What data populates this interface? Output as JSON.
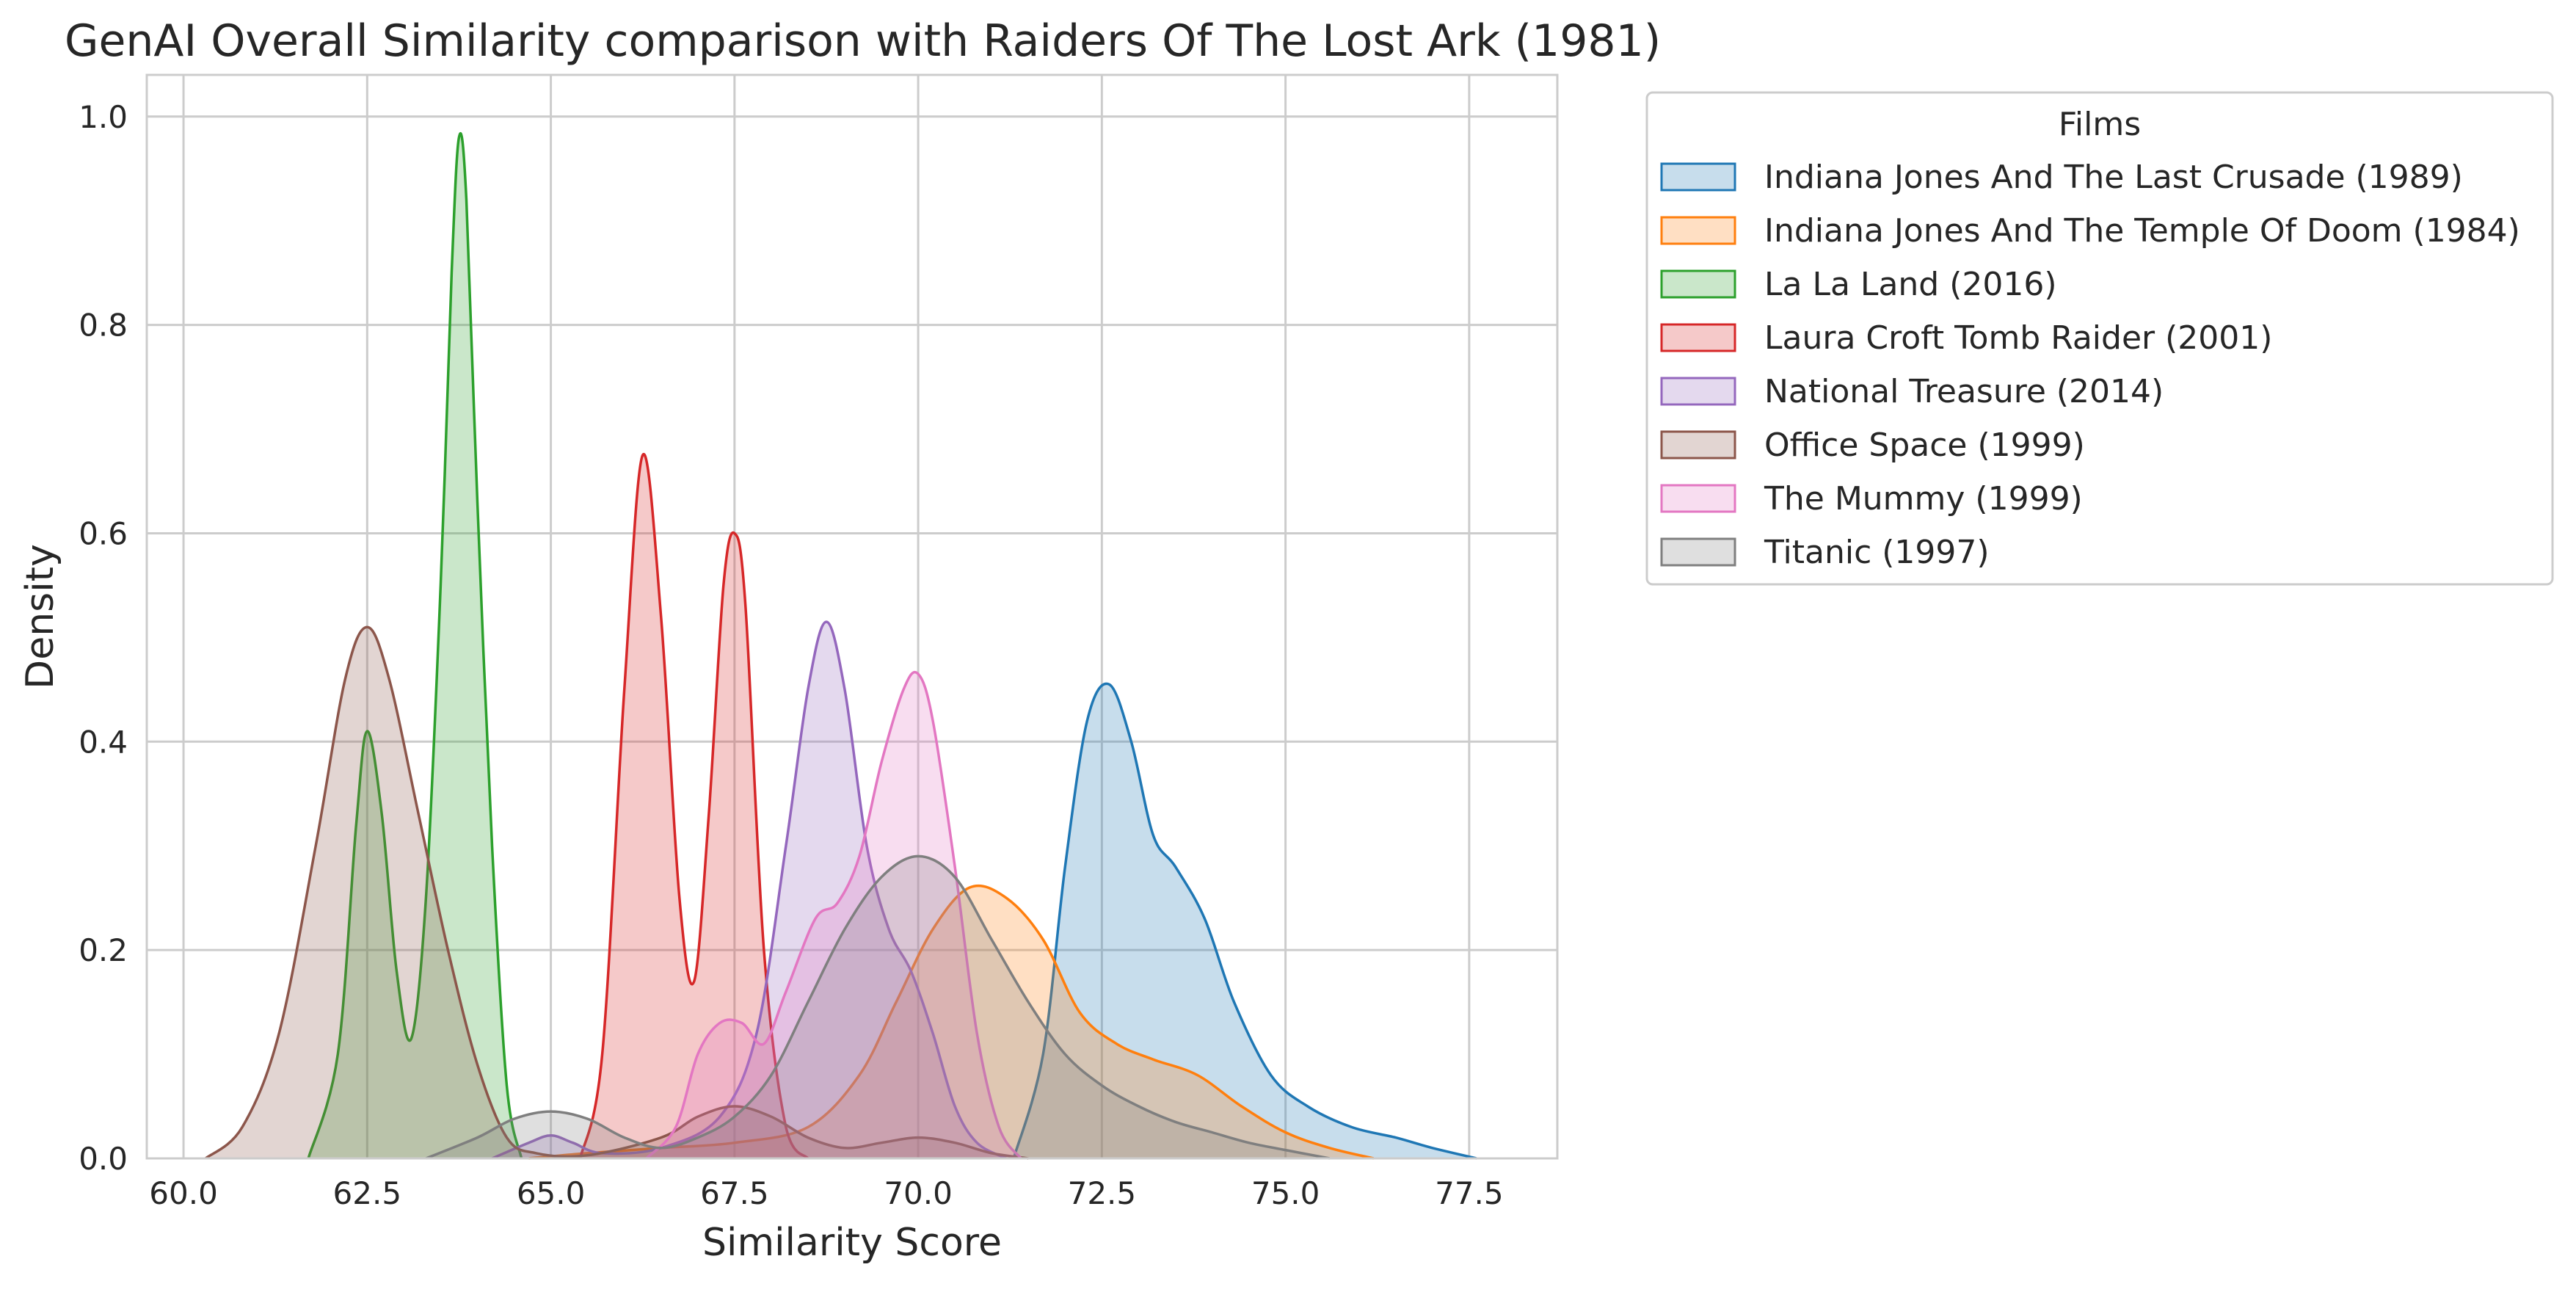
{
  "chart_data": {
    "type": "area",
    "title": "GenAI Overall Similarity comparison with Raiders Of The Lost Ark (1981)",
    "xlabel": "Similarity Score",
    "ylabel": "Density",
    "xlim": [
      59.5,
      78.7
    ],
    "ylim": [
      0,
      1.04
    ],
    "x_ticks": [
      "60.0",
      "62.5",
      "65.0",
      "67.5",
      "70.0",
      "72.5",
      "75.0",
      "77.5"
    ],
    "y_ticks": [
      "0.0",
      "0.2",
      "0.4",
      "0.6",
      "0.8",
      "1.0"
    ],
    "grid": true,
    "legend": {
      "title": "Films",
      "placement": "outside-top-right"
    },
    "series": [
      {
        "name": "Indiana Jones And The Last Crusade (1989)",
        "color": "#1f77b4",
        "points": [
          [
            71.3,
            0
          ],
          [
            71.7,
            0.1
          ],
          [
            72.0,
            0.28
          ],
          [
            72.3,
            0.42
          ],
          [
            72.6,
            0.455
          ],
          [
            72.9,
            0.4
          ],
          [
            73.2,
            0.31
          ],
          [
            73.5,
            0.28
          ],
          [
            73.9,
            0.23
          ],
          [
            74.3,
            0.15
          ],
          [
            74.8,
            0.08
          ],
          [
            75.3,
            0.05
          ],
          [
            75.9,
            0.03
          ],
          [
            76.5,
            0.02
          ],
          [
            77.0,
            0.01
          ],
          [
            77.6,
            0
          ]
        ]
      },
      {
        "name": "Indiana Jones And The Temple Of Doom (1984)",
        "color": "#ff7f0e",
        "points": [
          [
            64.7,
            0
          ],
          [
            65.5,
            0.005
          ],
          [
            66.5,
            0.01
          ],
          [
            67.5,
            0.015
          ],
          [
            68.5,
            0.03
          ],
          [
            69.2,
            0.08
          ],
          [
            69.7,
            0.15
          ],
          [
            70.2,
            0.22
          ],
          [
            70.7,
            0.26
          ],
          [
            71.2,
            0.25
          ],
          [
            71.7,
            0.21
          ],
          [
            72.2,
            0.14
          ],
          [
            72.7,
            0.11
          ],
          [
            73.2,
            0.095
          ],
          [
            73.8,
            0.08
          ],
          [
            74.4,
            0.05
          ],
          [
            75.0,
            0.025
          ],
          [
            75.6,
            0.01
          ],
          [
            76.2,
            0
          ]
        ]
      },
      {
        "name": "La La Land (2016)",
        "color": "#2ca02c",
        "points": [
          [
            61.7,
            0
          ],
          [
            62.1,
            0.1
          ],
          [
            62.35,
            0.32
          ],
          [
            62.5,
            0.41
          ],
          [
            62.7,
            0.33
          ],
          [
            62.9,
            0.18
          ],
          [
            63.1,
            0.115
          ],
          [
            63.3,
            0.25
          ],
          [
            63.5,
            0.55
          ],
          [
            63.65,
            0.85
          ],
          [
            63.75,
            0.98
          ],
          [
            63.85,
            0.92
          ],
          [
            64.0,
            0.63
          ],
          [
            64.2,
            0.3
          ],
          [
            64.4,
            0.07
          ],
          [
            64.6,
            0
          ]
        ]
      },
      {
        "name": "Laura Croft Tomb Raider (2001)",
        "color": "#d62728",
        "points": [
          [
            65.4,
            0
          ],
          [
            65.7,
            0.1
          ],
          [
            66.0,
            0.45
          ],
          [
            66.25,
            0.675
          ],
          [
            66.5,
            0.52
          ],
          [
            66.75,
            0.25
          ],
          [
            66.95,
            0.17
          ],
          [
            67.15,
            0.33
          ],
          [
            67.35,
            0.55
          ],
          [
            67.5,
            0.6
          ],
          [
            67.65,
            0.53
          ],
          [
            67.9,
            0.2
          ],
          [
            68.2,
            0.03
          ],
          [
            68.5,
            0
          ]
        ]
      },
      {
        "name": "National Treasure (2014)",
        "color": "#9467bd",
        "points": [
          [
            64.2,
            0
          ],
          [
            64.7,
            0.015
          ],
          [
            65.0,
            0.022
          ],
          [
            65.3,
            0.015
          ],
          [
            65.7,
            0.005
          ],
          [
            66.5,
            0.01
          ],
          [
            67.3,
            0.04
          ],
          [
            67.8,
            0.12
          ],
          [
            68.2,
            0.3
          ],
          [
            68.5,
            0.45
          ],
          [
            68.75,
            0.515
          ],
          [
            69.0,
            0.45
          ],
          [
            69.3,
            0.3
          ],
          [
            69.6,
            0.22
          ],
          [
            69.9,
            0.18
          ],
          [
            70.2,
            0.12
          ],
          [
            70.5,
            0.05
          ],
          [
            70.8,
            0.015
          ],
          [
            71.2,
            0
          ]
        ]
      },
      {
        "name": "Office Space (1999)",
        "color": "#8c564b",
        "points": [
          [
            60.3,
            0
          ],
          [
            60.8,
            0.03
          ],
          [
            61.3,
            0.12
          ],
          [
            61.8,
            0.3
          ],
          [
            62.2,
            0.46
          ],
          [
            62.5,
            0.51
          ],
          [
            62.8,
            0.46
          ],
          [
            63.2,
            0.33
          ],
          [
            63.6,
            0.2
          ],
          [
            64.0,
            0.09
          ],
          [
            64.4,
            0.02
          ],
          [
            64.8,
            0.005
          ],
          [
            65.5,
            0.003
          ],
          [
            66.5,
            0.02
          ],
          [
            67.0,
            0.04
          ],
          [
            67.5,
            0.05
          ],
          [
            68.0,
            0.04
          ],
          [
            68.5,
            0.02
          ],
          [
            69.0,
            0.01
          ],
          [
            69.5,
            0.015
          ],
          [
            70.0,
            0.02
          ],
          [
            70.5,
            0.015
          ],
          [
            71.0,
            0.005
          ],
          [
            71.5,
            0
          ]
        ]
      },
      {
        "name": "The Mummy (1999)",
        "color": "#e377c2",
        "points": [
          [
            66.3,
            0
          ],
          [
            66.7,
            0.03
          ],
          [
            67.0,
            0.1
          ],
          [
            67.3,
            0.13
          ],
          [
            67.6,
            0.13
          ],
          [
            67.9,
            0.11
          ],
          [
            68.2,
            0.16
          ],
          [
            68.6,
            0.23
          ],
          [
            68.9,
            0.245
          ],
          [
            69.2,
            0.29
          ],
          [
            69.5,
            0.38
          ],
          [
            69.8,
            0.45
          ],
          [
            70.0,
            0.465
          ],
          [
            70.2,
            0.42
          ],
          [
            70.5,
            0.28
          ],
          [
            70.8,
            0.12
          ],
          [
            71.1,
            0.03
          ],
          [
            71.4,
            0
          ]
        ]
      },
      {
        "name": "Titanic (1997)",
        "color": "#7f7f7f",
        "points": [
          [
            63.3,
            0
          ],
          [
            64.0,
            0.02
          ],
          [
            64.5,
            0.038
          ],
          [
            65.0,
            0.045
          ],
          [
            65.5,
            0.038
          ],
          [
            66.0,
            0.02
          ],
          [
            66.5,
            0.01
          ],
          [
            67.0,
            0.02
          ],
          [
            67.5,
            0.04
          ],
          [
            68.0,
            0.08
          ],
          [
            68.5,
            0.15
          ],
          [
            69.0,
            0.22
          ],
          [
            69.5,
            0.27
          ],
          [
            70.0,
            0.29
          ],
          [
            70.5,
            0.27
          ],
          [
            71.0,
            0.21
          ],
          [
            71.5,
            0.15
          ],
          [
            72.0,
            0.1
          ],
          [
            72.5,
            0.07
          ],
          [
            73.0,
            0.05
          ],
          [
            73.5,
            0.035
          ],
          [
            74.0,
            0.025
          ],
          [
            74.5,
            0.015
          ],
          [
            75.0,
            0.008
          ],
          [
            75.6,
            0
          ]
        ]
      }
    ]
  }
}
